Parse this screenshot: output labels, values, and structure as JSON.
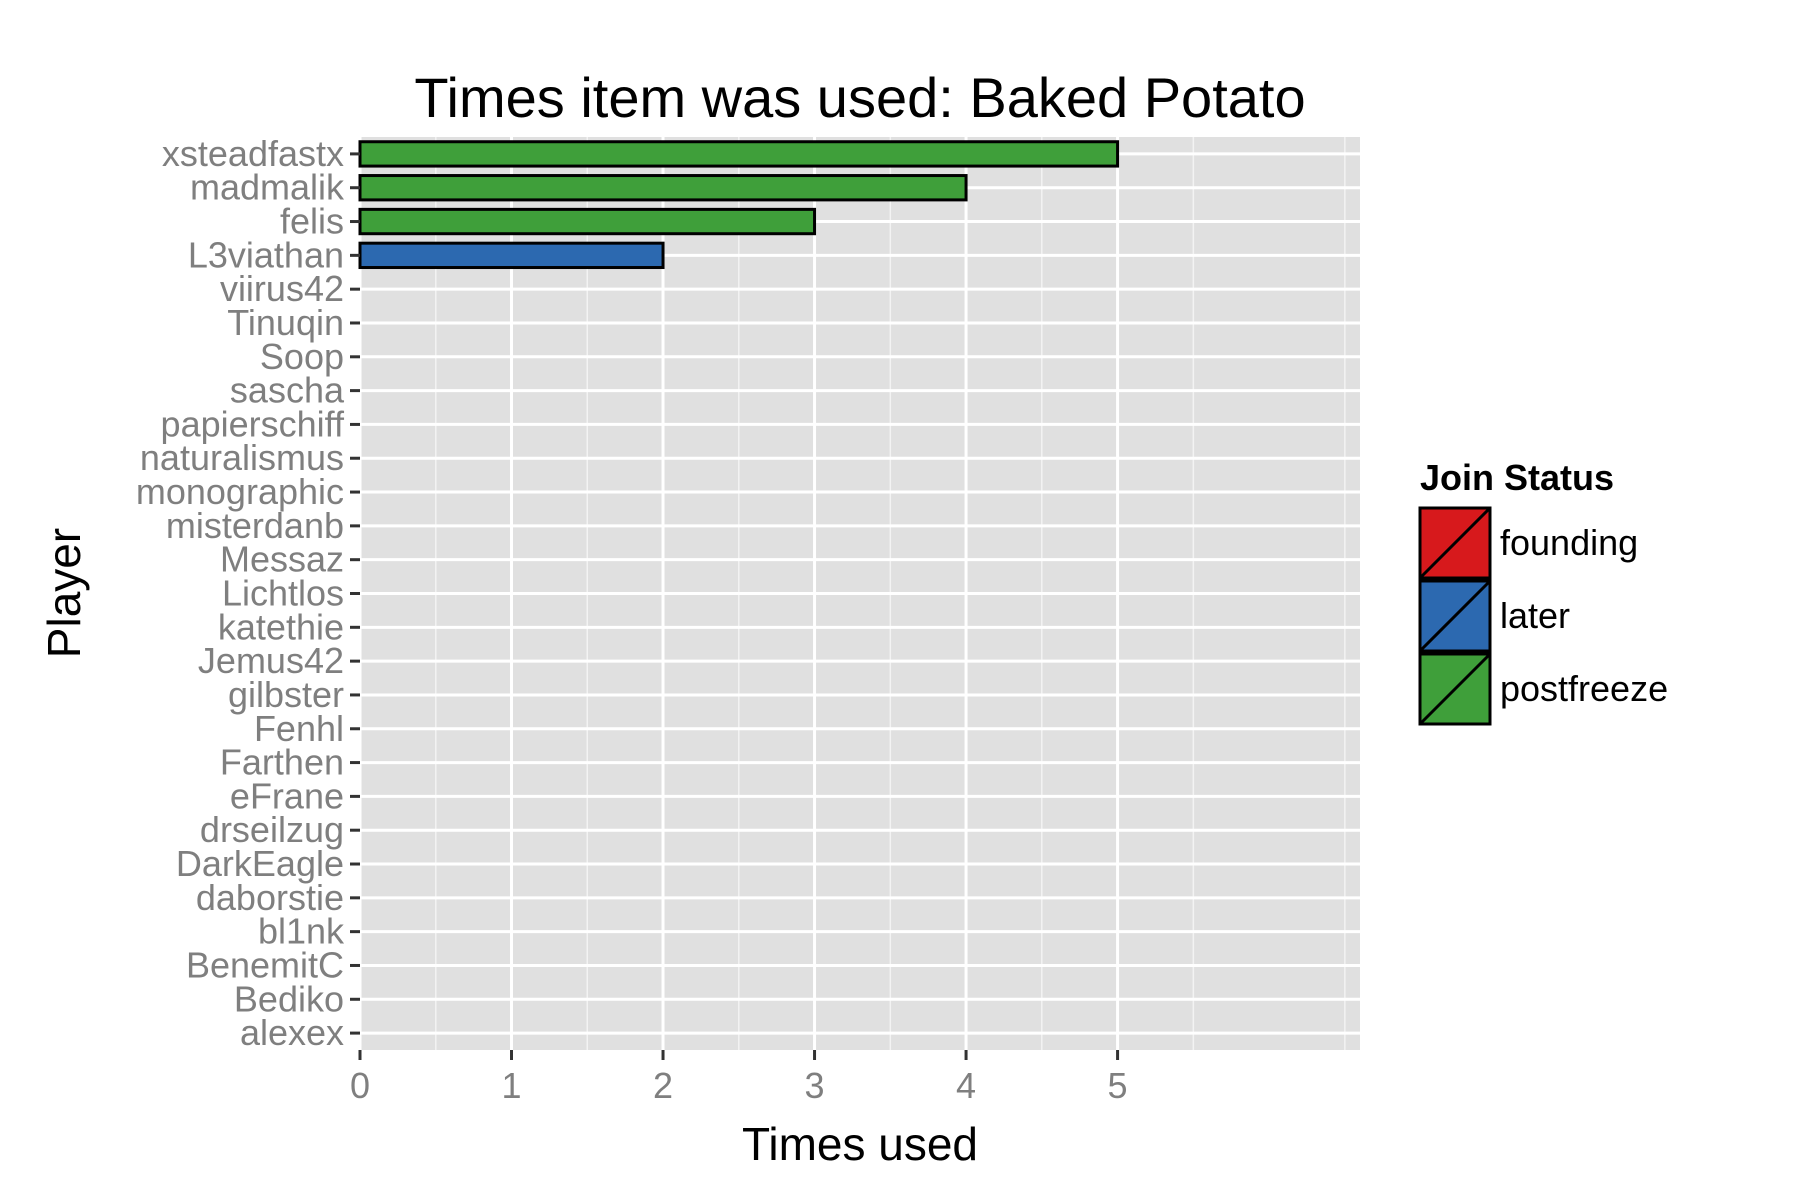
{
  "chart_data": {
    "type": "bar",
    "orientation": "horizontal",
    "title": "Times item was used: Baked Potato",
    "xlabel": "Times used",
    "ylabel": "Player",
    "xlim": [
      0,
      6.6
    ],
    "x_ticks": [
      0,
      1,
      2,
      3,
      4,
      5
    ],
    "grid": true,
    "categories": [
      "xsteadfastx",
      "madmalik",
      "felis",
      "L3viathan",
      "viirus42",
      "Tinuqin",
      "Soop",
      "sascha",
      "papierschiff",
      "naturalismus",
      "monographic",
      "misterdanb",
      "Messaz",
      "Lichtlos",
      "katethie",
      "Jemus42",
      "gilbster",
      "Fenhl",
      "Farthen",
      "eFrane",
      "drseilzug",
      "DarkEagle",
      "daborstie",
      "bl1nk",
      "BenemitC",
      "Bediko",
      "alexex"
    ],
    "values": [
      5,
      4,
      3,
      2,
      0,
      0,
      0,
      0,
      0,
      0,
      0,
      0,
      0,
      0,
      0,
      0,
      0,
      0,
      0,
      0,
      0,
      0,
      0,
      0,
      0,
      0,
      0
    ],
    "status": [
      "postfreeze",
      "postfreeze",
      "postfreeze",
      "later",
      "postfreeze",
      "postfreeze",
      "postfreeze",
      "postfreeze",
      "postfreeze",
      "postfreeze",
      "postfreeze",
      "postfreeze",
      "postfreeze",
      "postfreeze",
      "postfreeze",
      "postfreeze",
      "postfreeze",
      "postfreeze",
      "postfreeze",
      "postfreeze",
      "postfreeze",
      "postfreeze",
      "postfreeze",
      "postfreeze",
      "postfreeze",
      "postfreeze",
      "postfreeze"
    ],
    "legend": {
      "title": "Join Status",
      "placement": "right",
      "entries": [
        {
          "label": "founding",
          "color": "#d7191c"
        },
        {
          "label": "later",
          "color": "#2c69b0"
        },
        {
          "label": "postfreeze",
          "color": "#3f9f3a"
        }
      ]
    },
    "colors": {
      "panel": "#e0e0e0",
      "grid": "#ffffff",
      "bar_outline": "#000000",
      "tick_text": "#7f7f7f"
    }
  }
}
